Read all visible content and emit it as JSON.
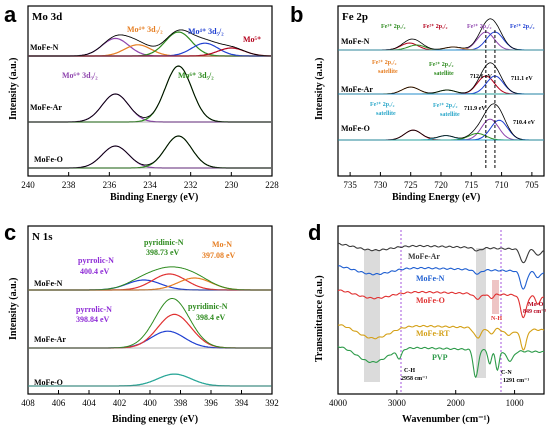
{
  "chart_data": [
    {
      "panel": "a",
      "type": "line",
      "title": "Mo 3d",
      "xlabel": "Binding Energy (eV)",
      "ylabel": "Intensity (a.u.)",
      "xlim": [
        240,
        228
      ],
      "xticks": [
        "240",
        "238",
        "236",
        "234",
        "232",
        "230",
        "228"
      ],
      "series": [
        {
          "name": "MoFe-N",
          "peaks": [
            [
              235.7,
              0.55
            ],
            [
              234.6,
              0.35
            ],
            [
              232.6,
              0.75
            ],
            [
              231.3,
              0.4
            ],
            [
              230.0,
              0.25
            ]
          ]
        },
        {
          "name": "MoFe-Ar",
          "peaks": [
            [
              235.7,
              0.5
            ],
            [
              232.6,
              1.0
            ]
          ]
        },
        {
          "name": "MoFe-O",
          "peaks": [
            [
              235.7,
              0.55
            ],
            [
              232.6,
              0.8
            ]
          ]
        }
      ],
      "annotations": [
        {
          "text": "Mo⁴⁺ 3d₃/₂",
          "color": "#e67e22"
        },
        {
          "text": "Mo⁴⁺ 3d₅/₂",
          "color": "#1f3fd1"
        },
        {
          "text": "Mo⁵⁺",
          "color": "#b3001b"
        },
        {
          "text": "Mo⁶⁺ 3d₃/₂",
          "color": "#8e44ad"
        },
        {
          "text": "Mo⁶⁺ 3d₅/₂",
          "color": "#2e8b1f"
        }
      ]
    },
    {
      "panel": "b",
      "type": "line",
      "title": "Fe 2p",
      "xlabel": "Binding Energy (eV)",
      "ylabel": "Intensity (a.u.)",
      "xlim": [
        737,
        703
      ],
      "xticks": [
        "735",
        "730",
        "725",
        "720",
        "715",
        "710",
        "705"
      ],
      "series": [
        {
          "name": "MoFe-N"
        },
        {
          "name": "MoFe-Ar"
        },
        {
          "name": "MoFe-O"
        }
      ],
      "annotations": [
        {
          "text": "Fe³⁺ 2p₁/₂",
          "color": "#2e8b1f"
        },
        {
          "text": "Fe²⁺ 2p₁/₂",
          "color": "#b3001b"
        },
        {
          "text": "Fe³⁺ 2p₃/₂",
          "color": "#8e44ad"
        },
        {
          "text": "Fe²⁺ 2p₃/₂",
          "color": "#1f3fd1"
        },
        {
          "text": "Fe²⁺ 2p₁/₂",
          "color": "#e67e22"
        },
        {
          "text": "satellite",
          "color": "#e67e22"
        },
        {
          "text": "Fe²⁺ 2p₃/₂",
          "color": "#2e8b1f"
        },
        {
          "text": "satellite",
          "color": "#2e8b1f"
        },
        {
          "text": "712.6 eV",
          "color": "#000000"
        },
        {
          "text": "711.1 eV",
          "color": "#000000"
        },
        {
          "text": "Fe³⁺ 2p₁/₂",
          "color": "#2aa7c9"
        },
        {
          "text": "satellite",
          "color": "#2aa7c9"
        },
        {
          "text": "Fe³⁺ 2p₃/₂",
          "color": "#2aa7c9"
        },
        {
          "text": "711.9 eV",
          "color": "#000000"
        },
        {
          "text": "satellite",
          "color": "#2aa7c9"
        },
        {
          "text": "710.4 eV",
          "color": "#000000"
        }
      ]
    },
    {
      "panel": "c",
      "type": "line",
      "title": "N 1s",
      "xlabel": "Binding energy (eV)",
      "ylabel": "Intensity (a.u.)",
      "xlim": [
        408,
        392
      ],
      "xticks": [
        "408",
        "406",
        "404",
        "402",
        "400",
        "398",
        "396",
        "394",
        "392"
      ],
      "series": [
        {
          "name": "MoFe-N",
          "peaks": [
            [
              400.4,
              0.25
            ],
            [
              398.73,
              0.4
            ],
            [
              397.08,
              0.3
            ]
          ]
        },
        {
          "name": "MoFe-Ar",
          "peaks": [
            [
              398.84,
              0.35
            ],
            [
              398.4,
              0.7
            ]
          ]
        },
        {
          "name": "MoFe-O",
          "peaks": [
            [
              398.4,
              0.35
            ]
          ]
        }
      ],
      "annotations": [
        {
          "text": "pyrrolic-N",
          "color": "#8e2bd6"
        },
        {
          "text": "400.4 eV",
          "color": "#8e2bd6"
        },
        {
          "text": "pyridinic-N",
          "color": "#2e8b1f"
        },
        {
          "text": "398.73 eV",
          "color": "#2e8b1f"
        },
        {
          "text": "Mo-N",
          "color": "#e67e22"
        },
        {
          "text": "397.08 eV",
          "color": "#e67e22"
        },
        {
          "text": "pyrrolic-N",
          "color": "#8e2bd6"
        },
        {
          "text": "398.84 eV",
          "color": "#8e2bd6"
        },
        {
          "text": "pyridinic-N",
          "color": "#2e8b1f"
        },
        {
          "text": "398.4 eV",
          "color": "#2e8b1f"
        }
      ]
    },
    {
      "panel": "d",
      "type": "line",
      "xlabel": "Wavenumber (cm⁻¹)",
      "ylabel": "Transmittance (a.u.)",
      "xlim": [
        4000,
        500
      ],
      "xticks": [
        "4000",
        "3000",
        "2000",
        "1000"
      ],
      "series": [
        {
          "name": "MoFe-Ar",
          "color": "#3a3a3a"
        },
        {
          "name": "MoFe-N",
          "color": "#1f5fd1"
        },
        {
          "name": "MoFe-O",
          "color": "#e03030"
        },
        {
          "name": "MoFe-RT",
          "color": "#d4a017"
        },
        {
          "name": "PVP",
          "color": "#2e9b4a"
        }
      ],
      "annotations": [
        {
          "text": "N-H",
          "color": "#e03030"
        },
        {
          "text": "Mo-O",
          "color": "#b3001b"
        },
        {
          "text": "849 cm⁻¹",
          "color": "#b3001b"
        },
        {
          "text": "C-H",
          "color": "#000000"
        },
        {
          "text": "2958 cm⁻¹",
          "color": "#000000"
        },
        {
          "text": "C-N",
          "color": "#000000"
        },
        {
          "text": "1291 cm⁻¹",
          "color": "#000000"
        }
      ]
    }
  ]
}
